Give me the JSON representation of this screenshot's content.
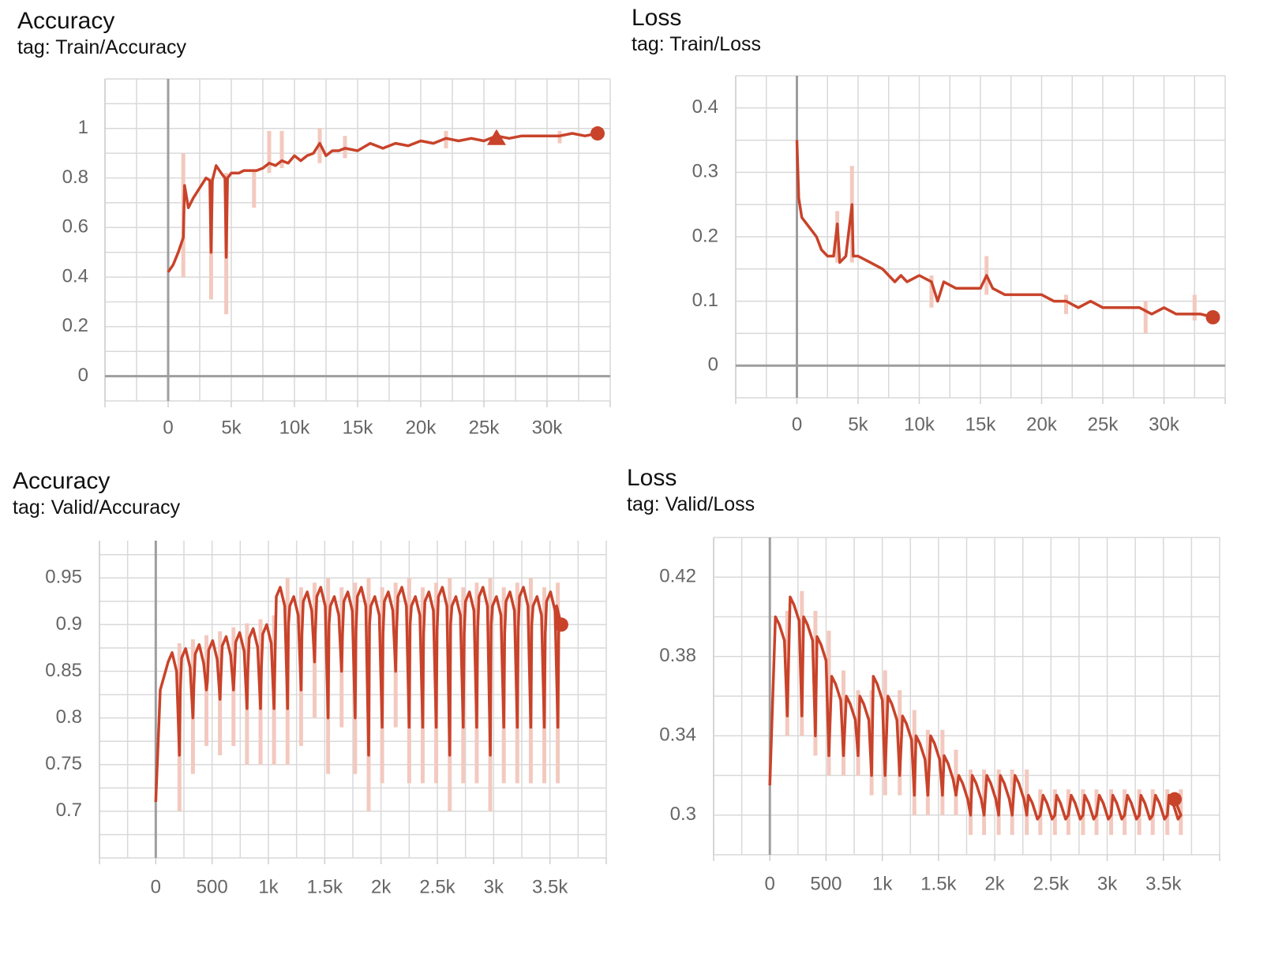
{
  "colors": {
    "line": "#c8432a",
    "raw": "#f3c9bf",
    "grid": "#d9d9d9",
    "axis": "#9e9e9e",
    "text": "#666666"
  },
  "chart_data": [
    {
      "id": "train-acc",
      "type": "line",
      "title": "Accuracy",
      "subtitle": "tag: Train/Accuracy",
      "xlim": [
        -5000,
        35000
      ],
      "ylim": [
        -0.1,
        1.2
      ],
      "xticks": [
        0,
        5000,
        10000,
        15000,
        20000,
        25000,
        30000
      ],
      "xticklabels": [
        "0",
        "5k",
        "10k",
        "15k",
        "20k",
        "25k",
        "30k"
      ],
      "yticks": [
        0,
        0.2,
        0.4,
        0.6,
        0.8,
        1.0
      ],
      "yticklabels": [
        "0",
        "0.2",
        "0.4",
        "0.6",
        "0.8",
        "1"
      ],
      "end_marker": "circle",
      "extra_marker": {
        "shape": "triangle",
        "x": 26000,
        "y": 0.965
      },
      "smoothed": [
        [
          0,
          0.42
        ],
        [
          400,
          0.45
        ],
        [
          800,
          0.5
        ],
        [
          1200,
          0.56
        ],
        [
          1300,
          0.77
        ],
        [
          1600,
          0.68
        ],
        [
          2000,
          0.72
        ],
        [
          2500,
          0.76
        ],
        [
          3000,
          0.8
        ],
        [
          3300,
          0.79
        ],
        [
          3400,
          0.5
        ],
        [
          3500,
          0.79
        ],
        [
          3800,
          0.85
        ],
        [
          4200,
          0.82
        ],
        [
          4500,
          0.8
        ],
        [
          4600,
          0.48
        ],
        [
          4700,
          0.8
        ],
        [
          5000,
          0.82
        ],
        [
          5600,
          0.82
        ],
        [
          6000,
          0.83
        ],
        [
          6500,
          0.83
        ],
        [
          7000,
          0.83
        ],
        [
          7500,
          0.84
        ],
        [
          8000,
          0.86
        ],
        [
          8500,
          0.85
        ],
        [
          9000,
          0.87
        ],
        [
          9500,
          0.86
        ],
        [
          10000,
          0.89
        ],
        [
          10500,
          0.87
        ],
        [
          11000,
          0.89
        ],
        [
          11500,
          0.9
        ],
        [
          12000,
          0.94
        ],
        [
          12500,
          0.89
        ],
        [
          13000,
          0.91
        ],
        [
          13500,
          0.91
        ],
        [
          14000,
          0.92
        ],
        [
          15000,
          0.91
        ],
        [
          16000,
          0.94
        ],
        [
          17000,
          0.92
        ],
        [
          18000,
          0.94
        ],
        [
          19000,
          0.93
        ],
        [
          20000,
          0.95
        ],
        [
          21000,
          0.94
        ],
        [
          22000,
          0.96
        ],
        [
          23000,
          0.95
        ],
        [
          24000,
          0.96
        ],
        [
          25000,
          0.95
        ],
        [
          26000,
          0.97
        ],
        [
          27000,
          0.96
        ],
        [
          28000,
          0.97
        ],
        [
          29000,
          0.97
        ],
        [
          30000,
          0.97
        ],
        [
          31000,
          0.97
        ],
        [
          32000,
          0.98
        ],
        [
          33000,
          0.97
        ],
        [
          34000,
          0.98
        ]
      ],
      "raw_spikes": [
        [
          1200,
          0.4,
          0.9
        ],
        [
          3400,
          0.31,
          0.8
        ],
        [
          4600,
          0.25,
          0.82
        ],
        [
          6800,
          0.68,
          0.83
        ],
        [
          8000,
          0.82,
          0.99
        ],
        [
          9000,
          0.84,
          0.99
        ],
        [
          12000,
          0.86,
          1.0
        ],
        [
          14000,
          0.88,
          0.97
        ],
        [
          22000,
          0.92,
          0.99
        ],
        [
          26000,
          0.94,
          0.99
        ],
        [
          31000,
          0.94,
          0.99
        ]
      ]
    },
    {
      "id": "train-loss",
      "type": "line",
      "title": "Loss",
      "subtitle": "tag: Train/Loss",
      "xlim": [
        -5000,
        35000
      ],
      "ylim": [
        -0.05,
        0.45
      ],
      "xticks": [
        0,
        5000,
        10000,
        15000,
        20000,
        25000,
        30000
      ],
      "xticklabels": [
        "0",
        "5k",
        "10k",
        "15k",
        "20k",
        "25k",
        "30k"
      ],
      "yticks": [
        0,
        0.1,
        0.2,
        0.3,
        0.4
      ],
      "yticklabels": [
        "0",
        "0.1",
        "0.2",
        "0.3",
        "0.4"
      ],
      "end_marker": "circle",
      "smoothed": [
        [
          0,
          0.35
        ],
        [
          150,
          0.26
        ],
        [
          400,
          0.23
        ],
        [
          800,
          0.22
        ],
        [
          1200,
          0.21
        ],
        [
          1600,
          0.2
        ],
        [
          2000,
          0.18
        ],
        [
          2500,
          0.17
        ],
        [
          3000,
          0.17
        ],
        [
          3300,
          0.22
        ],
        [
          3500,
          0.16
        ],
        [
          4000,
          0.17
        ],
        [
          4500,
          0.25
        ],
        [
          4600,
          0.17
        ],
        [
          5000,
          0.17
        ],
        [
          6000,
          0.16
        ],
        [
          7000,
          0.15
        ],
        [
          7500,
          0.14
        ],
        [
          8000,
          0.13
        ],
        [
          8500,
          0.14
        ],
        [
          9000,
          0.13
        ],
        [
          10000,
          0.14
        ],
        [
          11000,
          0.13
        ],
        [
          11500,
          0.1
        ],
        [
          12000,
          0.13
        ],
        [
          13000,
          0.12
        ],
        [
          14000,
          0.12
        ],
        [
          15000,
          0.12
        ],
        [
          15500,
          0.14
        ],
        [
          16000,
          0.12
        ],
        [
          17000,
          0.11
        ],
        [
          18000,
          0.11
        ],
        [
          19000,
          0.11
        ],
        [
          20000,
          0.11
        ],
        [
          21000,
          0.1
        ],
        [
          22000,
          0.1
        ],
        [
          23000,
          0.09
        ],
        [
          24000,
          0.1
        ],
        [
          25000,
          0.09
        ],
        [
          26000,
          0.09
        ],
        [
          27000,
          0.09
        ],
        [
          28000,
          0.09
        ],
        [
          29000,
          0.08
        ],
        [
          30000,
          0.09
        ],
        [
          31000,
          0.08
        ],
        [
          32000,
          0.08
        ],
        [
          33000,
          0.08
        ],
        [
          34000,
          0.075
        ]
      ],
      "raw_spikes": [
        [
          3300,
          0.16,
          0.24
        ],
        [
          4500,
          0.16,
          0.31
        ],
        [
          11000,
          0.09,
          0.14
        ],
        [
          15500,
          0.11,
          0.17
        ],
        [
          22000,
          0.08,
          0.11
        ],
        [
          28500,
          0.05,
          0.1
        ],
        [
          32500,
          0.07,
          0.11
        ]
      ]
    },
    {
      "id": "valid-acc",
      "type": "line",
      "title": "Accuracy",
      "subtitle": "tag: Valid/Accuracy",
      "xlim": [
        -500,
        4000
      ],
      "ylim": [
        0.65,
        0.99
      ],
      "xticks": [
        0,
        500,
        1000,
        1500,
        2000,
        2500,
        3000,
        3500
      ],
      "xticklabels": [
        "0",
        "500",
        "1k",
        "1.5k",
        "2k",
        "2.5k",
        "3k",
        "3.5k"
      ],
      "yticks": [
        0.7,
        0.75,
        0.8,
        0.85,
        0.9,
        0.95
      ],
      "yticklabels": [
        "0.7",
        "0.75",
        "0.8",
        "0.85",
        "0.9",
        "0.95"
      ],
      "end_marker": "circle",
      "cycles": {
        "count": 29,
        "start": 100,
        "period": 120,
        "low_peak": [
          0.87,
          0.9
        ],
        "high_peak": [
          0.93,
          0.94
        ],
        "dips": [
          0.76,
          0.8,
          0.83,
          0.82,
          0.83,
          0.81,
          0.81,
          0.81,
          0.81,
          0.83,
          0.86,
          0.8,
          0.85,
          0.8,
          0.76,
          0.79,
          0.85,
          0.79,
          0.79,
          0.79,
          0.76,
          0.79,
          0.79,
          0.76,
          0.79,
          0.79,
          0.79,
          0.79,
          0.79
        ]
      },
      "start_point": [
        0,
        0.71
      ],
      "end_point": [
        3600,
        0.9
      ]
    },
    {
      "id": "valid-loss",
      "type": "line",
      "title": "Loss",
      "subtitle": "tag: Valid/Loss",
      "xlim": [
        -500,
        4000
      ],
      "ylim": [
        0.28,
        0.44
      ],
      "xticks": [
        0,
        500,
        1000,
        1500,
        2000,
        2500,
        3000,
        3500
      ],
      "xticklabels": [
        "0",
        "500",
        "1k",
        "1.5k",
        "2k",
        "2.5k",
        "3k",
        "3.5k"
      ],
      "yticks": [
        0.3,
        0.34,
        0.38,
        0.42
      ],
      "yticklabels": [
        "0.3",
        "0.34",
        "0.38",
        "0.42"
      ],
      "end_marker": "circle",
      "peaks": [
        [
          50,
          0.4
        ],
        [
          180,
          0.41
        ],
        [
          300,
          0.4
        ],
        [
          420,
          0.39
        ],
        [
          550,
          0.37
        ],
        [
          680,
          0.36
        ],
        [
          800,
          0.36
        ],
        [
          920,
          0.37
        ],
        [
          1050,
          0.36
        ],
        [
          1180,
          0.35
        ],
        [
          1300,
          0.34
        ],
        [
          1430,
          0.34
        ],
        [
          1550,
          0.33
        ],
        [
          1680,
          0.32
        ],
        [
          1800,
          0.32
        ],
        [
          1930,
          0.32
        ],
        [
          2050,
          0.32
        ],
        [
          2180,
          0.32
        ],
        [
          2300,
          0.31
        ],
        [
          2430,
          0.31
        ],
        [
          2550,
          0.31
        ],
        [
          2680,
          0.31
        ],
        [
          2800,
          0.31
        ],
        [
          2930,
          0.31
        ],
        [
          3050,
          0.31
        ],
        [
          3180,
          0.31
        ],
        [
          3300,
          0.31
        ],
        [
          3430,
          0.31
        ],
        [
          3550,
          0.31
        ]
      ],
      "dips": [
        0.35,
        0.35,
        0.34,
        0.33,
        0.33,
        0.33,
        0.32,
        0.32,
        0.32,
        0.31,
        0.31,
        0.31,
        0.31,
        0.3,
        0.3,
        0.3,
        0.3,
        0.3,
        0.3,
        0.3,
        0.3,
        0.3,
        0.3,
        0.3,
        0.3,
        0.3,
        0.3,
        0.3,
        0.3
      ],
      "start_point": [
        0,
        0.315
      ],
      "end_point": [
        3600,
        0.308
      ]
    }
  ]
}
